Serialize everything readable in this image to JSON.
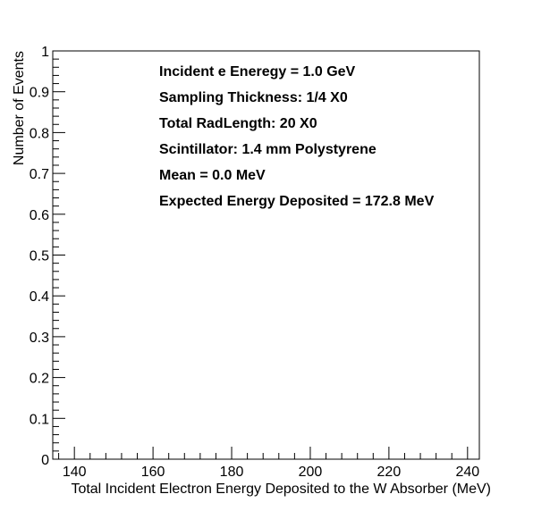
{
  "chart_data": {
    "type": "histogram",
    "xlabel": "Total Incident Electron Energy Deposited to the W Absorber (MeV)",
    "ylabel": "Number of Events",
    "xlim": [
      134.5,
      243
    ],
    "ylim": [
      0,
      1
    ],
    "x_major_ticks": [
      140,
      160,
      180,
      200,
      220,
      240
    ],
    "x_tick_labels": [
      "140",
      "160",
      "180",
      "200",
      "220",
      "240"
    ],
    "y_major_ticks": [
      0,
      0.1,
      0.2,
      0.3,
      0.4,
      0.5,
      0.6,
      0.7,
      0.8,
      0.9,
      1
    ],
    "y_tick_labels": [
      "0",
      "0.1",
      "0.2",
      "0.3",
      "0.4",
      "0.5",
      "0.6",
      "0.7",
      "0.8",
      "0.9",
      "1"
    ],
    "series": [],
    "grid": false,
    "legend": "none",
    "annotations": [
      "Incident e Eneregy = 1.0 GeV",
      "Sampling Thickness: 1/4 X0",
      "Total RadLength: 20 X0",
      "Scintillator: 1.4 mm Polystyrene",
      "Mean = 0.0 MeV",
      "Expected Energy Deposited = 172.8 MeV"
    ]
  }
}
